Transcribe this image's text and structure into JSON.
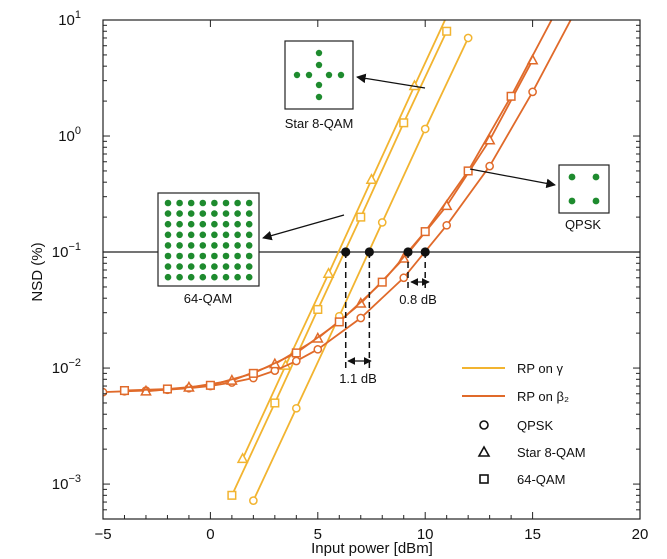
{
  "chart_data": {
    "type": "line",
    "xlabel": "Input power [dBm]",
    "ylabel": "NSD (%)",
    "xlim": [
      -5,
      20
    ],
    "ylim": [
      0.0005,
      10
    ],
    "yscale": "log",
    "xticks": [
      "−5",
      "0",
      "5",
      "10",
      "15",
      "20"
    ],
    "yticks": [
      {
        "base": "10",
        "exp": "−3"
      },
      {
        "base": "10",
        "exp": "−2"
      },
      {
        "base": "10",
        "exp": "−1"
      },
      {
        "base": "10",
        "exp": "0"
      },
      {
        "base": "10",
        "exp": "1"
      }
    ],
    "grid": false,
    "legend_position": "bottom-right",
    "reference_line_y": 0.1,
    "colors": {
      "gamma": "#F2B430",
      "beta2": "#E06A2A",
      "constellation_dot": "#1E8B2E",
      "marker_fill": "#ffffff"
    },
    "series": [
      {
        "name": "RP on γ",
        "group": "gamma",
        "marker": "circle",
        "x": [
          2,
          4,
          6,
          8,
          10,
          12
        ],
        "y": [
          0.00072,
          0.0045,
          0.028,
          0.18,
          1.15,
          7.0
        ]
      },
      {
        "name": "RP on γ",
        "group": "gamma",
        "marker": "triangle",
        "x": [
          1.5,
          3.5,
          5.5,
          7.5,
          9.5,
          11.5
        ],
        "y": [
          0.00165,
          0.0105,
          0.065,
          0.42,
          2.7,
          17.0
        ]
      },
      {
        "name": "RP on γ",
        "group": "gamma",
        "marker": "square",
        "x": [
          1,
          3,
          5,
          7,
          9,
          11
        ],
        "y": [
          0.0008,
          0.005,
          0.032,
          0.2,
          1.3,
          8.0
        ]
      },
      {
        "name": "RP on β₂",
        "group": "beta2",
        "marker": "circle",
        "x": [
          -5,
          -4,
          -3,
          -2,
          -1,
          0,
          1,
          2,
          3,
          4,
          5,
          7,
          9,
          11,
          13,
          15,
          17
        ],
        "y": [
          0.0062,
          0.0063,
          0.0064,
          0.0065,
          0.0067,
          0.007,
          0.0075,
          0.0082,
          0.0095,
          0.0115,
          0.0145,
          0.027,
          0.06,
          0.17,
          0.55,
          2.4,
          12
        ]
      },
      {
        "name": "RP on β₂",
        "group": "beta2",
        "marker": "triangle",
        "x": [
          -3,
          -1,
          1,
          3,
          5,
          7,
          9,
          11,
          13,
          15
        ],
        "y": [
          0.0063,
          0.0068,
          0.0078,
          0.0108,
          0.018,
          0.036,
          0.088,
          0.25,
          0.92,
          4.5
        ]
      },
      {
        "name": "RP on β₂",
        "group": "beta2",
        "marker": "square",
        "x": [
          -4,
          -2,
          0,
          2,
          4,
          6,
          8,
          10,
          12,
          14,
          16
        ],
        "y": [
          0.0064,
          0.0066,
          0.0071,
          0.009,
          0.0135,
          0.025,
          0.055,
          0.15,
          0.5,
          2.2,
          11
        ]
      }
    ],
    "threshold_points": [
      {
        "x": 6.3,
        "y": 0.1
      },
      {
        "x": 7.4,
        "y": 0.1
      },
      {
        "x": 9.2,
        "y": 0.1
      },
      {
        "x": 10.0,
        "y": 0.1
      }
    ],
    "annotations": {
      "gap_1": "1.1 dB",
      "gap_2": "0.8 dB",
      "qam64": "64-QAM",
      "star8": "Star 8-QAM",
      "qpsk": "QPSK"
    },
    "legend": [
      {
        "label": "RP on γ",
        "kind": "line",
        "group": "gamma"
      },
      {
        "label": "RP on β₂",
        "kind": "line",
        "group": "beta2"
      },
      {
        "label": "QPSK",
        "kind": "marker",
        "marker": "circle"
      },
      {
        "label": "Star 8-QAM",
        "kind": "marker",
        "marker": "triangle"
      },
      {
        "label": "64-QAM",
        "kind": "marker",
        "marker": "square"
      }
    ]
  }
}
